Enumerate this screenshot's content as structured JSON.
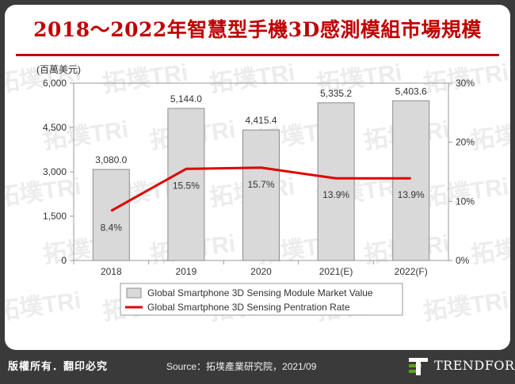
{
  "page": {
    "title": "2018～2022年智慧型手機3D感測模組市場規模",
    "rights": "版權所有．翻印必究",
    "source": "Source：拓墣產業研究院，2021/09",
    "brand": "TRENDFORCE",
    "watermark": "拓墣TRi",
    "colors": {
      "title": "#c00000",
      "bar_fill": "#d9d9d9",
      "line": "#e00000",
      "footer": "#3a3a3a"
    }
  },
  "chart_data": {
    "type": "bar",
    "title": "2018～2022年智慧型手機3D感測模組市場規模",
    "y_unit_label": "(百萬美元)",
    "categories": [
      "2018",
      "2019",
      "2020",
      "2021(E)",
      "2022(F)"
    ],
    "ylim": [
      0,
      6000
    ],
    "y2lim": [
      0,
      30
    ],
    "y_ticks": [
      "0",
      "1,500",
      "3,000",
      "4,500",
      "6,000"
    ],
    "y2_ticks": [
      "0%",
      "10%",
      "20%",
      "30%"
    ],
    "series": [
      {
        "name": "Global Smartphone 3D Sensing Module Market Value",
        "kind": "bar",
        "axis": "left",
        "values": [
          3080.0,
          5144.0,
          4415.4,
          5335.2,
          5403.6
        ],
        "labels": [
          "3,080.0",
          "5,144.0",
          "4,415.4",
          "5,335.2",
          "5,403.6"
        ]
      },
      {
        "name": "Global Smartphone 3D Sensing Pentration Rate",
        "kind": "line",
        "axis": "right",
        "values": [
          8.4,
          15.5,
          15.7,
          13.9,
          13.9
        ],
        "labels": [
          "8.4%",
          "15.5%",
          "15.7%",
          "13.9%",
          "13.9%"
        ]
      }
    ]
  }
}
